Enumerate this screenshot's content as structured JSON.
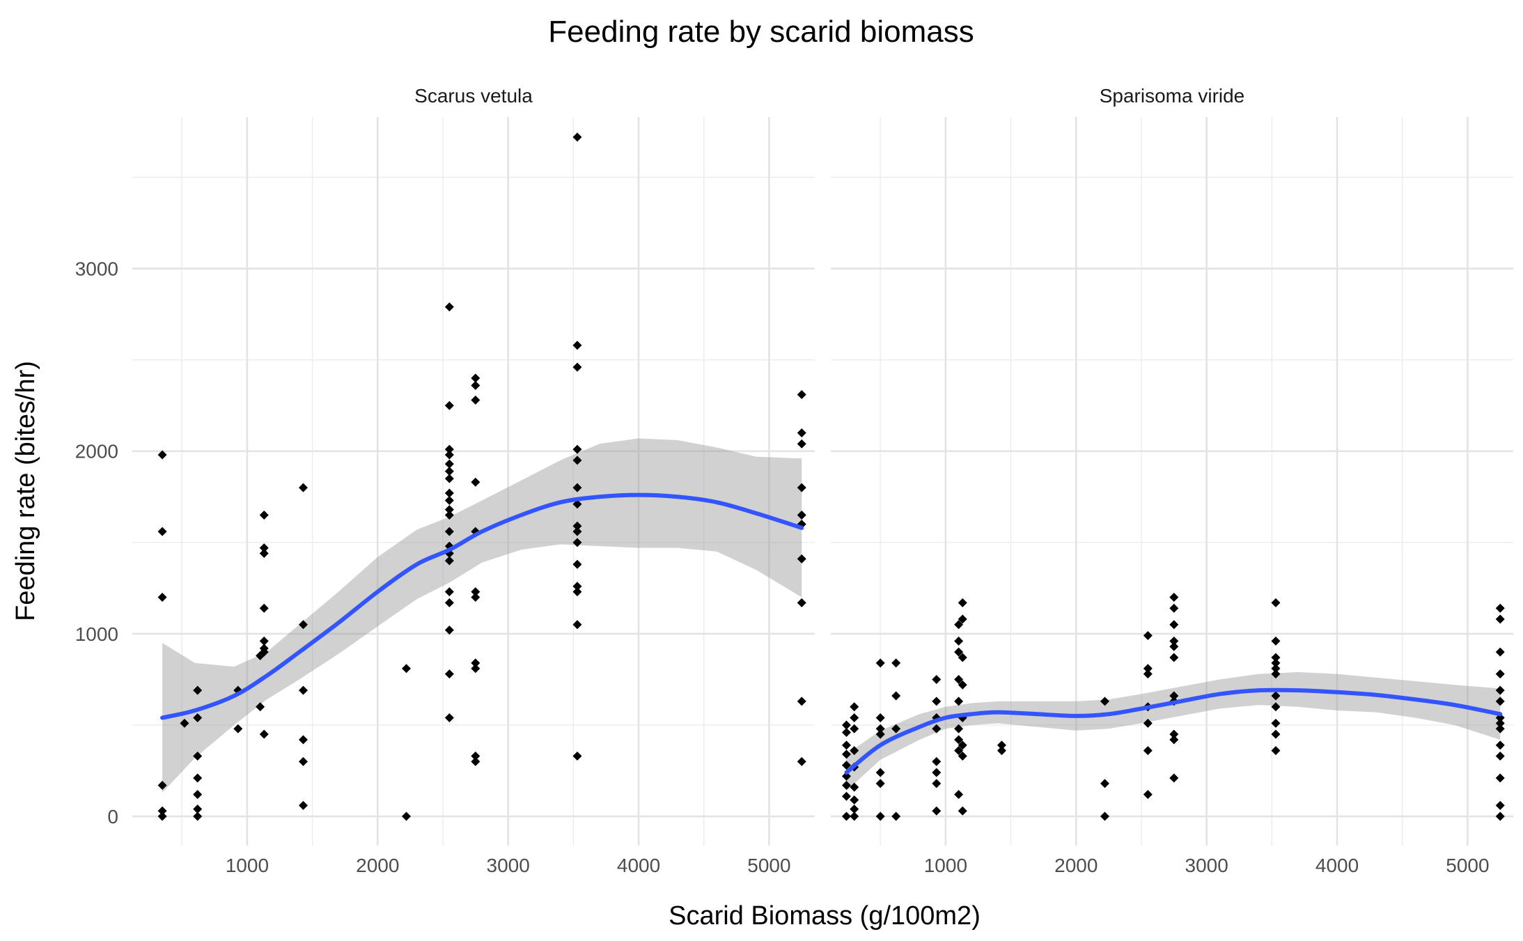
{
  "chart_data": {
    "type": "scatter",
    "title": "Feeding rate by scarid biomass",
    "xlabel": "Scarid Biomass (g/100m2)",
    "ylabel": "Feeding rate (bites/hr)",
    "xlim": [
      120,
      5350
    ],
    "ylim": [
      -160,
      3830
    ],
    "x_ticks": [
      1000,
      2000,
      3000,
      4000,
      5000
    ],
    "y_ticks": [
      0,
      1000,
      2000,
      3000
    ],
    "grid": true,
    "colors": {
      "points": "#000000",
      "smooth_line": "#3355ff",
      "ribbon": "#999999",
      "grid": "#e3e3e3"
    },
    "facets": [
      {
        "label": "Scarus vetula",
        "points": [
          [
            350,
            1980
          ],
          [
            350,
            1560
          ],
          [
            350,
            1200
          ],
          [
            350,
            170
          ],
          [
            350,
            30
          ],
          [
            350,
            0
          ],
          [
            520,
            510
          ],
          [
            620,
            690
          ],
          [
            620,
            540
          ],
          [
            620,
            330
          ],
          [
            620,
            210
          ],
          [
            620,
            120
          ],
          [
            620,
            40
          ],
          [
            620,
            0
          ],
          [
            930,
            690
          ],
          [
            930,
            480
          ],
          [
            1100,
            880
          ],
          [
            1100,
            600
          ],
          [
            1130,
            1650
          ],
          [
            1130,
            1470
          ],
          [
            1130,
            1440
          ],
          [
            1130,
            1140
          ],
          [
            1130,
            960
          ],
          [
            1130,
            920
          ],
          [
            1130,
            900
          ],
          [
            1130,
            450
          ],
          [
            1430,
            1800
          ],
          [
            1430,
            1050
          ],
          [
            1430,
            690
          ],
          [
            1430,
            420
          ],
          [
            1430,
            300
          ],
          [
            1430,
            60
          ],
          [
            2220,
            810
          ],
          [
            2220,
            0
          ],
          [
            2550,
            2790
          ],
          [
            2550,
            2250
          ],
          [
            2550,
            2010
          ],
          [
            2550,
            1980
          ],
          [
            2550,
            1930
          ],
          [
            2550,
            1890
          ],
          [
            2550,
            1850
          ],
          [
            2550,
            1770
          ],
          [
            2550,
            1730
          ],
          [
            2550,
            1680
          ],
          [
            2550,
            1650
          ],
          [
            2550,
            1560
          ],
          [
            2550,
            1480
          ],
          [
            2550,
            1440
          ],
          [
            2550,
            1400
          ],
          [
            2550,
            1230
          ],
          [
            2550,
            1170
          ],
          [
            2550,
            1020
          ],
          [
            2550,
            780
          ],
          [
            2550,
            540
          ],
          [
            2750,
            2400
          ],
          [
            2750,
            2360
          ],
          [
            2750,
            2280
          ],
          [
            2750,
            1830
          ],
          [
            2750,
            1560
          ],
          [
            2750,
            1230
          ],
          [
            2750,
            1200
          ],
          [
            2750,
            840
          ],
          [
            2750,
            810
          ],
          [
            2750,
            330
          ],
          [
            2750,
            300
          ],
          [
            3530,
            3720
          ],
          [
            3530,
            2580
          ],
          [
            3530,
            2460
          ],
          [
            3530,
            2010
          ],
          [
            3530,
            1950
          ],
          [
            3530,
            1800
          ],
          [
            3530,
            1710
          ],
          [
            3530,
            1590
          ],
          [
            3530,
            1560
          ],
          [
            3530,
            1500
          ],
          [
            3530,
            1380
          ],
          [
            3530,
            1260
          ],
          [
            3530,
            1230
          ],
          [
            3530,
            1050
          ],
          [
            3530,
            330
          ],
          [
            5250,
            2310
          ],
          [
            5250,
            2100
          ],
          [
            5250,
            2040
          ],
          [
            5250,
            1800
          ],
          [
            5250,
            1650
          ],
          [
            5250,
            1600
          ],
          [
            5250,
            1410
          ],
          [
            5250,
            1170
          ],
          [
            5250,
            630
          ],
          [
            5250,
            300
          ]
        ],
        "smooth": [
          [
            350,
            540
          ],
          [
            600,
            580
          ],
          [
            900,
            660
          ],
          [
            1150,
            770
          ],
          [
            1400,
            900
          ],
          [
            1700,
            1060
          ],
          [
            2000,
            1230
          ],
          [
            2300,
            1380
          ],
          [
            2550,
            1460
          ],
          [
            2800,
            1560
          ],
          [
            3100,
            1650
          ],
          [
            3400,
            1720
          ],
          [
            3700,
            1750
          ],
          [
            4000,
            1760
          ],
          [
            4300,
            1750
          ],
          [
            4600,
            1720
          ],
          [
            4900,
            1660
          ],
          [
            5250,
            1580
          ]
        ],
        "ribbon_upper": [
          [
            350,
            950
          ],
          [
            600,
            840
          ],
          [
            900,
            820
          ],
          [
            1150,
            900
          ],
          [
            1400,
            1050
          ],
          [
            1700,
            1230
          ],
          [
            2000,
            1420
          ],
          [
            2300,
            1570
          ],
          [
            2550,
            1640
          ],
          [
            2800,
            1730
          ],
          [
            3100,
            1840
          ],
          [
            3400,
            1950
          ],
          [
            3700,
            2040
          ],
          [
            4000,
            2070
          ],
          [
            4300,
            2060
          ],
          [
            4600,
            2020
          ],
          [
            4900,
            1970
          ],
          [
            5250,
            1960
          ]
        ],
        "ribbon_lower": [
          [
            350,
            130
          ],
          [
            600,
            320
          ],
          [
            900,
            500
          ],
          [
            1150,
            640
          ],
          [
            1400,
            750
          ],
          [
            1700,
            890
          ],
          [
            2000,
            1040
          ],
          [
            2300,
            1190
          ],
          [
            2550,
            1280
          ],
          [
            2800,
            1390
          ],
          [
            3100,
            1460
          ],
          [
            3400,
            1490
          ],
          [
            3700,
            1480
          ],
          [
            4000,
            1470
          ],
          [
            4300,
            1470
          ],
          [
            4600,
            1450
          ],
          [
            4900,
            1350
          ],
          [
            5250,
            1200
          ]
        ]
      },
      {
        "label": "Sparisoma viride",
        "points": [
          [
            240,
            500
          ],
          [
            240,
            460
          ],
          [
            240,
            390
          ],
          [
            240,
            340
          ],
          [
            240,
            280
          ],
          [
            240,
            220
          ],
          [
            240,
            170
          ],
          [
            240,
            110
          ],
          [
            240,
            0
          ],
          [
            300,
            600
          ],
          [
            300,
            540
          ],
          [
            300,
            480
          ],
          [
            300,
            360
          ],
          [
            300,
            270
          ],
          [
            300,
            160
          ],
          [
            300,
            90
          ],
          [
            300,
            40
          ],
          [
            300,
            0
          ],
          [
            500,
            840
          ],
          [
            500,
            540
          ],
          [
            500,
            480
          ],
          [
            500,
            450
          ],
          [
            500,
            240
          ],
          [
            500,
            180
          ],
          [
            500,
            0
          ],
          [
            620,
            840
          ],
          [
            620,
            660
          ],
          [
            620,
            480
          ],
          [
            620,
            0
          ],
          [
            930,
            750
          ],
          [
            930,
            630
          ],
          [
            930,
            540
          ],
          [
            930,
            480
          ],
          [
            930,
            300
          ],
          [
            930,
            240
          ],
          [
            930,
            180
          ],
          [
            930,
            30
          ],
          [
            1100,
            1050
          ],
          [
            1100,
            960
          ],
          [
            1100,
            900
          ],
          [
            1100,
            750
          ],
          [
            1100,
            630
          ],
          [
            1100,
            480
          ],
          [
            1100,
            420
          ],
          [
            1100,
            360
          ],
          [
            1100,
            120
          ],
          [
            1130,
            1170
          ],
          [
            1130,
            1080
          ],
          [
            1130,
            870
          ],
          [
            1130,
            720
          ],
          [
            1130,
            540
          ],
          [
            1130,
            390
          ],
          [
            1130,
            330
          ],
          [
            1130,
            30
          ],
          [
            1430,
            390
          ],
          [
            1430,
            360
          ],
          [
            2220,
            630
          ],
          [
            2220,
            180
          ],
          [
            2220,
            0
          ],
          [
            2550,
            990
          ],
          [
            2550,
            810
          ],
          [
            2550,
            780
          ],
          [
            2550,
            600
          ],
          [
            2550,
            510
          ],
          [
            2550,
            360
          ],
          [
            2550,
            120
          ],
          [
            2750,
            1200
          ],
          [
            2750,
            1140
          ],
          [
            2750,
            1050
          ],
          [
            2750,
            960
          ],
          [
            2750,
            930
          ],
          [
            2750,
            870
          ],
          [
            2750,
            660
          ],
          [
            2750,
            630
          ],
          [
            2750,
            450
          ],
          [
            2750,
            420
          ],
          [
            2750,
            210
          ],
          [
            3530,
            1170
          ],
          [
            3530,
            960
          ],
          [
            3530,
            870
          ],
          [
            3530,
            840
          ],
          [
            3530,
            810
          ],
          [
            3530,
            780
          ],
          [
            3530,
            660
          ],
          [
            3530,
            600
          ],
          [
            3530,
            510
          ],
          [
            3530,
            450
          ],
          [
            3530,
            360
          ],
          [
            5250,
            1140
          ],
          [
            5250,
            1080
          ],
          [
            5250,
            900
          ],
          [
            5250,
            780
          ],
          [
            5250,
            690
          ],
          [
            5250,
            630
          ],
          [
            5250,
            540
          ],
          [
            5250,
            510
          ],
          [
            5250,
            480
          ],
          [
            5250,
            390
          ],
          [
            5250,
            330
          ],
          [
            5250,
            210
          ],
          [
            5250,
            60
          ],
          [
            5250,
            0
          ]
        ],
        "smooth": [
          [
            240,
            240
          ],
          [
            500,
            390
          ],
          [
            800,
            490
          ],
          [
            1000,
            540
          ],
          [
            1200,
            560
          ],
          [
            1400,
            570
          ],
          [
            1700,
            560
          ],
          [
            2000,
            550
          ],
          [
            2250,
            560
          ],
          [
            2500,
            590
          ],
          [
            2800,
            630
          ],
          [
            3100,
            670
          ],
          [
            3400,
            690
          ],
          [
            3700,
            690
          ],
          [
            4000,
            680
          ],
          [
            4300,
            665
          ],
          [
            4600,
            640
          ],
          [
            4900,
            610
          ],
          [
            5250,
            560
          ]
        ],
        "ribbon_upper": [
          [
            240,
            340
          ],
          [
            500,
            470
          ],
          [
            800,
            560
          ],
          [
            1000,
            600
          ],
          [
            1200,
            620
          ],
          [
            1400,
            630
          ],
          [
            1700,
            630
          ],
          [
            2000,
            630
          ],
          [
            2250,
            640
          ],
          [
            2500,
            670
          ],
          [
            2800,
            710
          ],
          [
            3100,
            750
          ],
          [
            3400,
            780
          ],
          [
            3700,
            790
          ],
          [
            4000,
            780
          ],
          [
            4300,
            760
          ],
          [
            4600,
            740
          ],
          [
            4900,
            720
          ],
          [
            5250,
            700
          ]
        ],
        "ribbon_lower": [
          [
            240,
            140
          ],
          [
            500,
            310
          ],
          [
            800,
            420
          ],
          [
            1000,
            480
          ],
          [
            1200,
            500
          ],
          [
            1400,
            510
          ],
          [
            1700,
            490
          ],
          [
            2000,
            470
          ],
          [
            2250,
            480
          ],
          [
            2500,
            510
          ],
          [
            2800,
            550
          ],
          [
            3100,
            590
          ],
          [
            3400,
            610
          ],
          [
            3700,
            600
          ],
          [
            4000,
            580
          ],
          [
            4300,
            570
          ],
          [
            4600,
            540
          ],
          [
            4900,
            500
          ],
          [
            5250,
            420
          ]
        ]
      }
    ]
  }
}
